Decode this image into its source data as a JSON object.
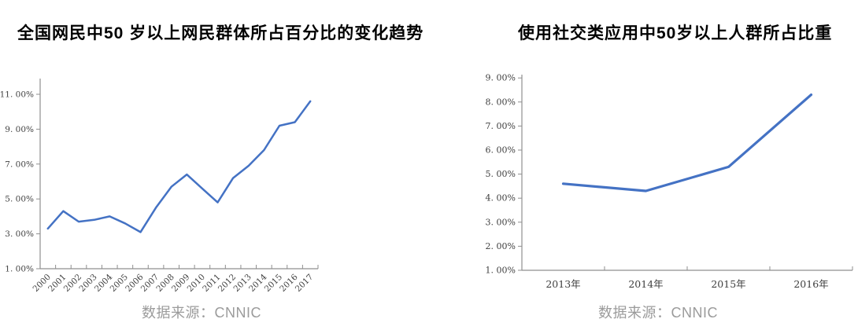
{
  "page": {
    "background": "#ffffff",
    "accent_blue": "#4472C4",
    "axis_color": "#8f8f8f",
    "tick_text_color": "#3f3f3f",
    "source_text_color": "#9b9b9b"
  },
  "chart_data": [
    {
      "type": "line",
      "title": "全国网民中50 岁以上网民群体所占百分比的变化趋势",
      "categories": [
        "2000",
        "2001",
        "2002",
        "2003",
        "2004",
        "2005",
        "2006",
        "2007",
        "2008",
        "2009",
        "2010",
        "2011",
        "2012",
        "2013",
        "2014",
        "2015",
        "2016",
        "2017"
      ],
      "values": [
        3.3,
        4.3,
        3.7,
        3.8,
        4.0,
        3.6,
        3.1,
        4.5,
        5.7,
        6.4,
        5.6,
        4.8,
        6.2,
        6.9,
        7.8,
        9.2,
        9.4,
        10.6
      ],
      "unit": "%",
      "ylim": [
        1,
        11
      ],
      "ytick_step": 2,
      "ytick_labels": [
        "1. 00%",
        "3. 00%",
        "5. 00%",
        "7. 00%",
        "9. 00%",
        "11. 00%"
      ],
      "x_label_rotation": 45,
      "grid": "off",
      "legend": "none",
      "line_color": "#4472C4",
      "source": "数据来源：CNNIC"
    },
    {
      "type": "line",
      "title": "使用社交类应用中50岁以上人群所占比重",
      "categories": [
        "2013年",
        "2014年",
        "2015年",
        "2016年"
      ],
      "values": [
        4.6,
        4.3,
        5.3,
        8.3
      ],
      "unit": "%",
      "ylim": [
        1,
        9
      ],
      "ytick_step": 1,
      "ytick_labels": [
        "1. 00%",
        "2. 00%",
        "3. 00%",
        "4. 00%",
        "5. 00%",
        "6. 00%",
        "7. 00%",
        "8. 00%",
        "9. 00%"
      ],
      "x_label_rotation": 0,
      "grid": "off",
      "legend": "none",
      "line_color": "#4472C4",
      "source": "数据来源：CNNIC"
    }
  ]
}
